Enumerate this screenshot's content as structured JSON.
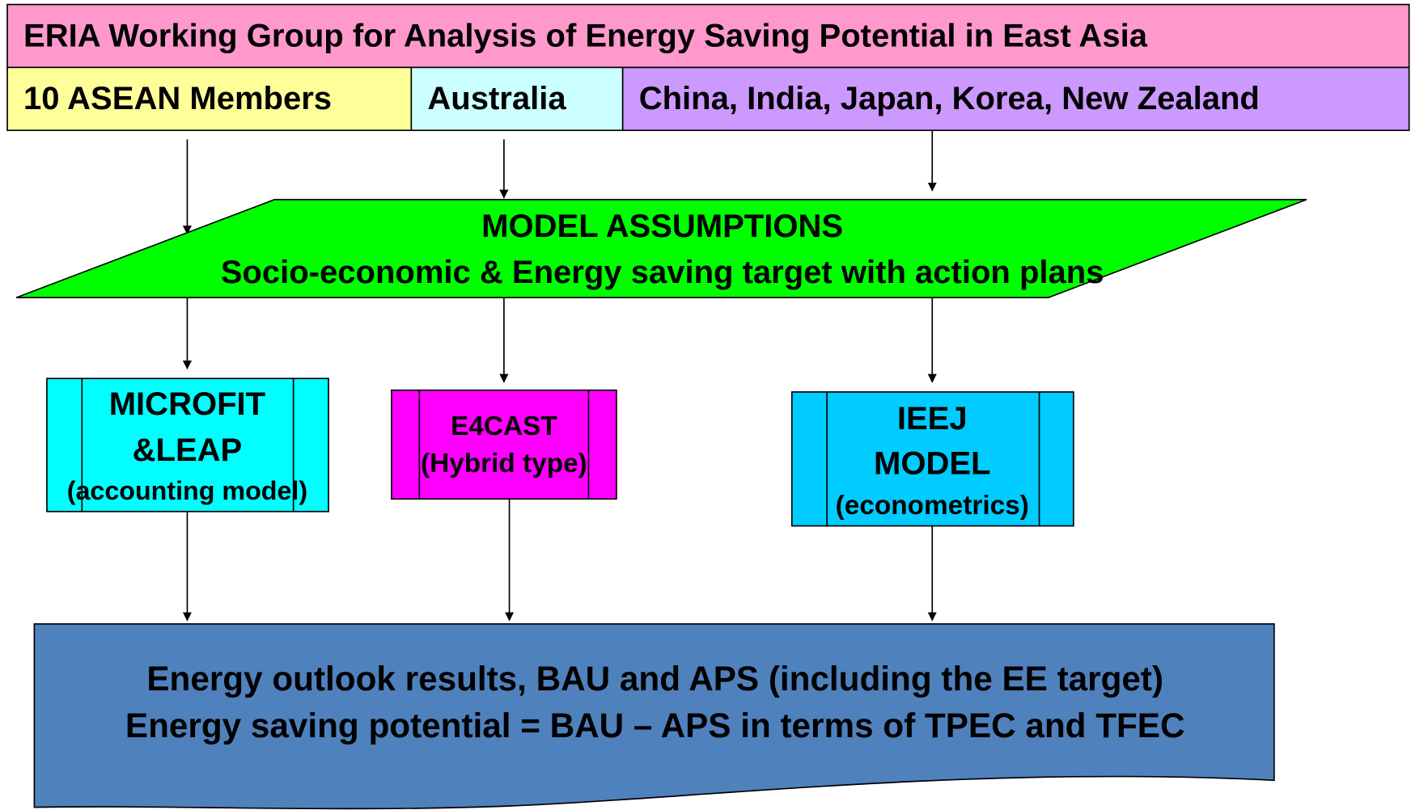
{
  "header": {
    "title": "ERIA Working Group for Analysis of Energy Saving Potential in East Asia"
  },
  "groups": [
    "10 ASEAN Members",
    "Australia",
    "China, India, Japan, Korea, New Zealand"
  ],
  "assumptions": {
    "title": "MODEL ASSUMPTIONS",
    "subtitle": "Socio-economic & Energy saving target with action plans"
  },
  "models": [
    {
      "name": [
        "MICROFIT",
        "&LEAP"
      ],
      "note": "(accounting model)"
    },
    {
      "name": [
        "E4CAST"
      ],
      "note": "(Hybrid type)"
    },
    {
      "name": [
        "IEEJ",
        "MODEL"
      ],
      "note": "(econometrics)"
    }
  ],
  "output": {
    "lines": [
      "Energy outlook results, BAU and APS (including the EE target)",
      "Energy saving potential = BAU – APS in terms of TPEC and TFEC"
    ]
  }
}
